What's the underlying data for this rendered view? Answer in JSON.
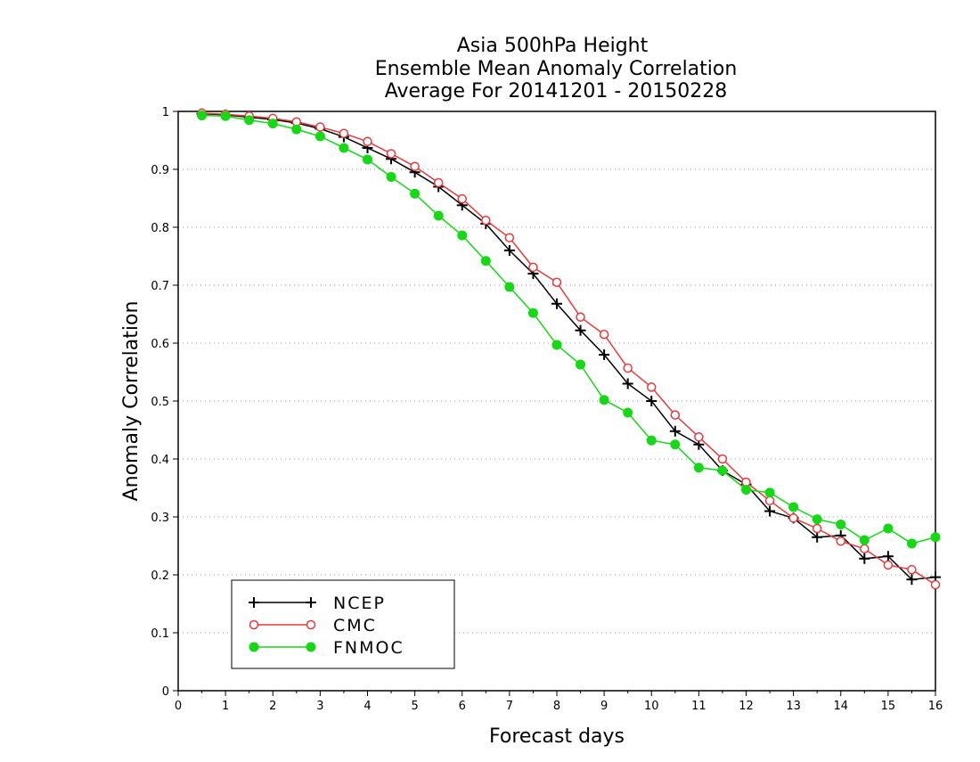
{
  "chart_data": {
    "type": "line",
    "title_lines": [
      "Asia 500hPa Height",
      "Ensemble Mean Anomaly Correlation",
      "Average For 20141201 - 20150228"
    ],
    "xlabel": "Forecast days",
    "ylabel": "Anomaly Correlation",
    "xlim": [
      0,
      16
    ],
    "ylim": [
      0,
      1
    ],
    "xticks": [
      0,
      1,
      2,
      3,
      4,
      5,
      6,
      7,
      8,
      9,
      10,
      11,
      12,
      13,
      14,
      15,
      16
    ],
    "yticks": [
      0,
      0.1,
      0.2,
      0.3,
      0.4,
      0.5,
      0.6,
      0.7,
      0.8,
      0.9,
      1
    ],
    "grid": true,
    "legend_position": "bottom-left",
    "x": [
      0.5,
      1,
      1.5,
      2,
      2.5,
      3,
      3.5,
      4,
      4.5,
      5,
      5.5,
      6,
      6.5,
      7,
      7.5,
      8,
      8.5,
      9,
      9.5,
      10,
      10.5,
      11,
      11.5,
      12,
      12.5,
      13,
      13.5,
      14,
      14.5,
      15,
      15.5,
      16
    ],
    "series": [
      {
        "name": "NCEP",
        "color": "#000000",
        "marker": "plus",
        "values": [
          0.996,
          0.994,
          0.99,
          0.986,
          0.98,
          0.97,
          0.956,
          0.937,
          0.918,
          0.895,
          0.87,
          0.838,
          0.806,
          0.76,
          0.72,
          0.668,
          0.622,
          0.58,
          0.53,
          0.5,
          0.448,
          0.425,
          0.38,
          0.356,
          0.31,
          0.298,
          0.265,
          0.268,
          0.228,
          0.232,
          0.192,
          0.196
        ]
      },
      {
        "name": "CMC",
        "color": "#e8393a",
        "marker": "open-circle",
        "values": [
          0.997,
          0.995,
          0.992,
          0.988,
          0.982,
          0.973,
          0.962,
          0.948,
          0.927,
          0.905,
          0.877,
          0.849,
          0.812,
          0.782,
          0.731,
          0.705,
          0.645,
          0.615,
          0.557,
          0.524,
          0.476,
          0.438,
          0.4,
          0.36,
          0.328,
          0.298,
          0.28,
          0.258,
          0.245,
          0.217,
          0.209,
          0.183
        ]
      },
      {
        "name": "FNMOC",
        "color": "#14d914",
        "marker": "filled-circle",
        "values": [
          0.993,
          0.992,
          0.985,
          0.979,
          0.969,
          0.957,
          0.937,
          0.917,
          0.887,
          0.858,
          0.82,
          0.786,
          0.742,
          0.697,
          0.652,
          0.597,
          0.563,
          0.502,
          0.48,
          0.432,
          0.425,
          0.385,
          0.38,
          0.347,
          0.342,
          0.317,
          0.296,
          0.287,
          0.26,
          0.28,
          0.254,
          0.265
        ]
      }
    ]
  }
}
